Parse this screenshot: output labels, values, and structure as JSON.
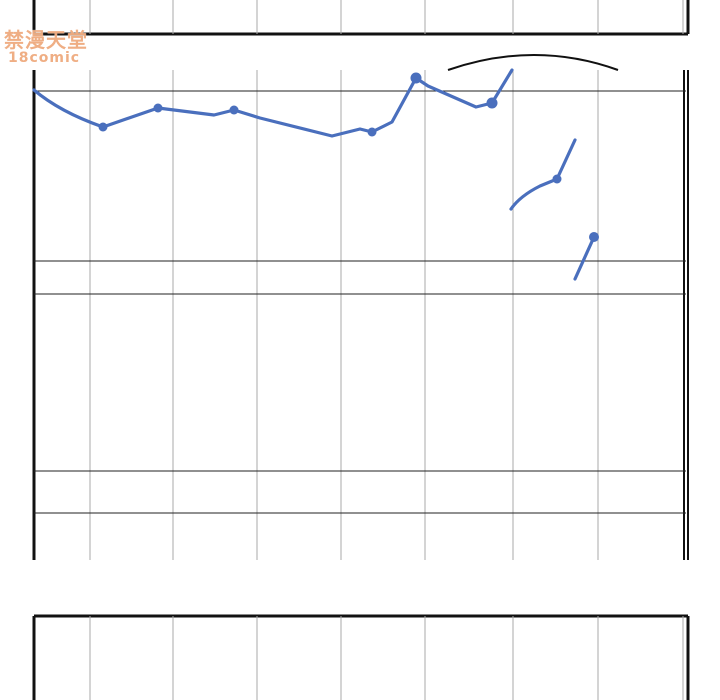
{
  "watermark": {
    "line1": "禁漫天堂",
    "line2": "18comic"
  },
  "colors": {
    "line": "#4a6fbd",
    "ink": "#111111",
    "grid": "#9a9a9a",
    "watermark": "#eca06e"
  }
}
